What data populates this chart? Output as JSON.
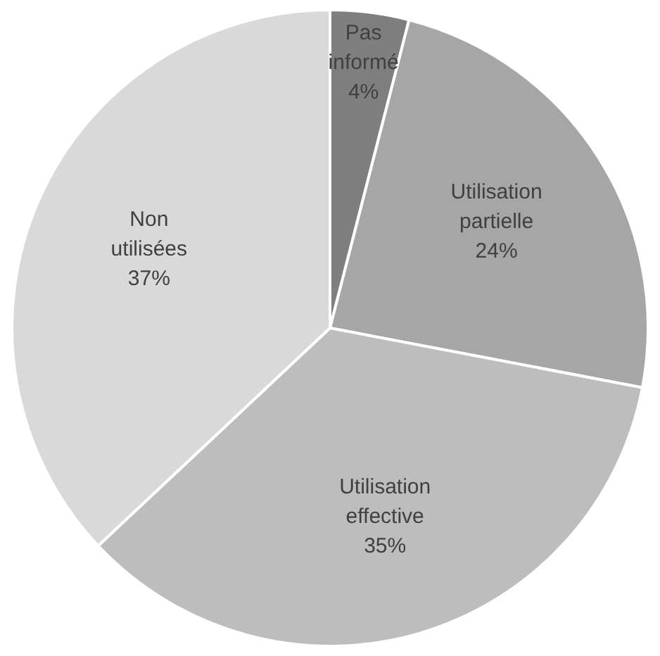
{
  "chart_data": {
    "type": "pie",
    "categories": [
      "Pas informé",
      "Utilisation partielle",
      "Utilisation effective",
      "Non utilisées"
    ],
    "values": [
      4,
      24,
      35,
      37
    ],
    "value_labels": [
      "4%",
      "24%",
      "35%",
      "37%"
    ],
    "colors": [
      "#7f7f7f",
      "#a6a6a6",
      "#bdbdbd",
      "#d9d9d9"
    ],
    "legend": false
  }
}
